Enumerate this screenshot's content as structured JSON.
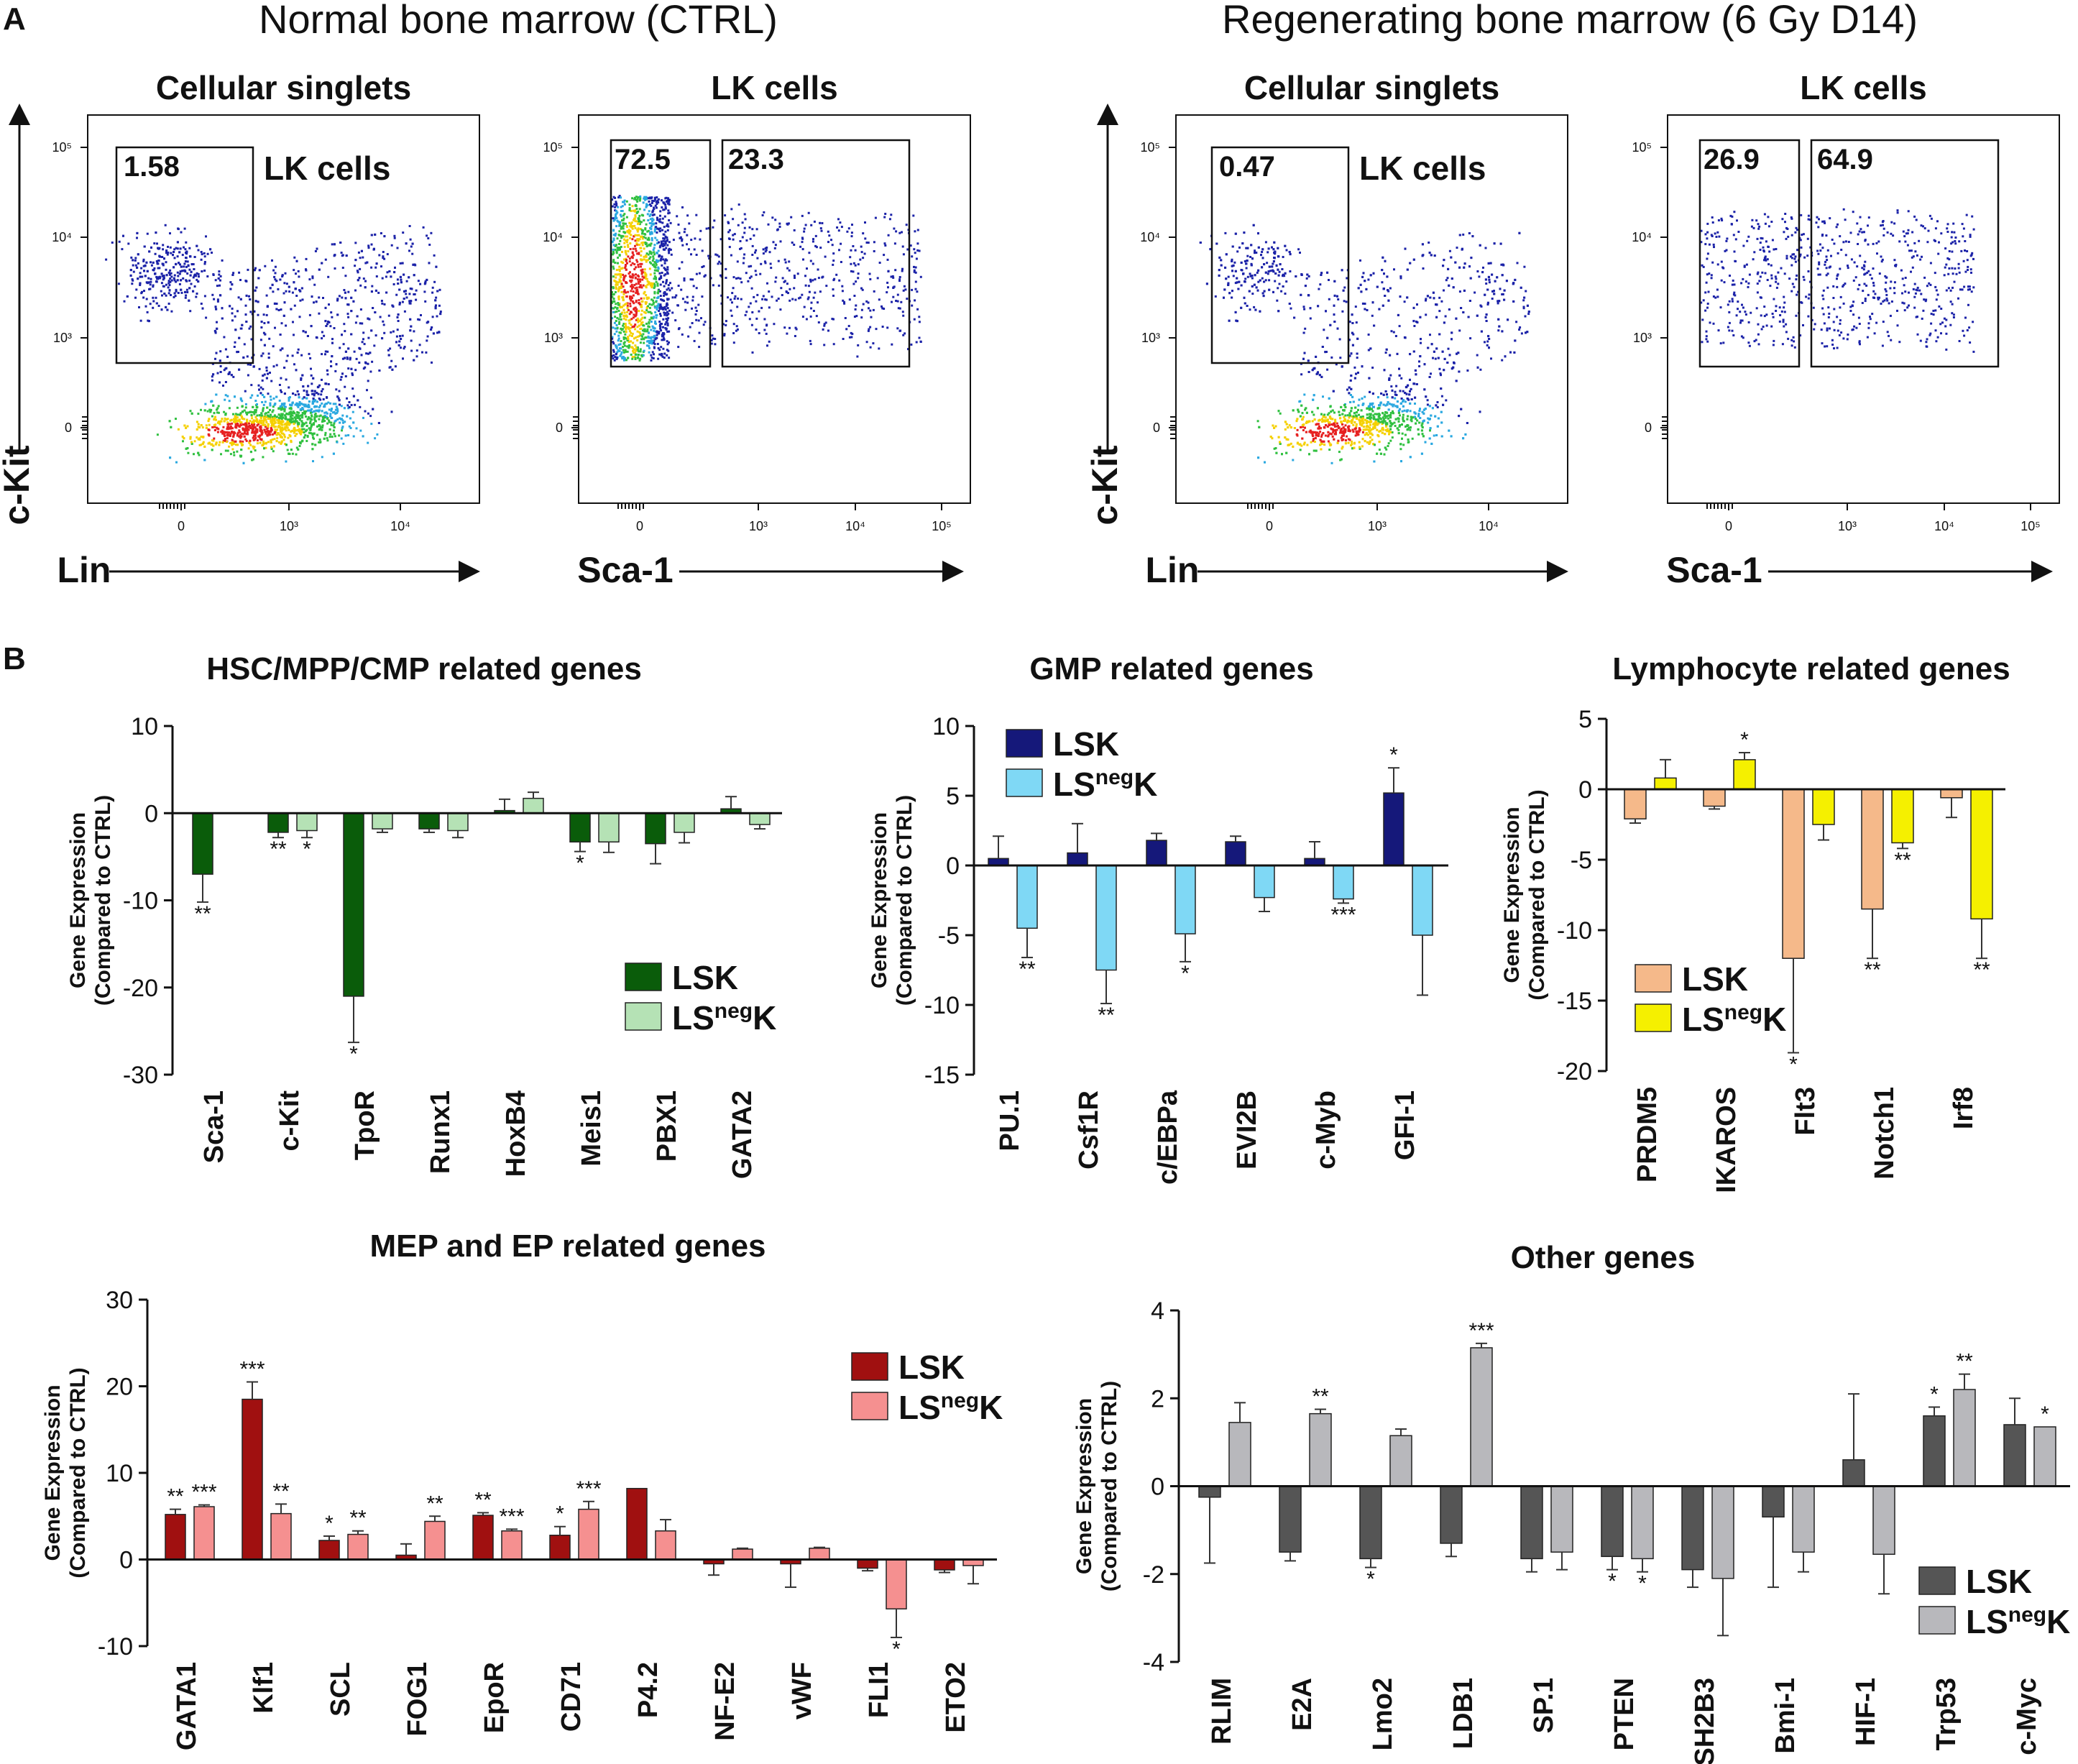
{
  "panel_a": {
    "letter": "A",
    "ctrl_title": "Normal bone marrow (CTRL)",
    "regen_title": "Regenerating bone marrow (6 Gy D14)",
    "plots": [
      {
        "title": "Cellular singlets",
        "gate_value": "1.58",
        "gate_label": "LK cells",
        "xlabel": "Lin",
        "ylabel": "c-Kit"
      },
      {
        "title": "LK cells",
        "gate_left": "72.5",
        "gate_right": "23.3",
        "xlabel": "Sca-1"
      },
      {
        "title": "Cellular singlets",
        "gate_value": "0.47",
        "gate_label": "LK cells",
        "xlabel": "Lin",
        "ylabel": "c-Kit"
      },
      {
        "title": "LK cells",
        "gate_left": "26.9",
        "gate_right": "64.9",
        "xlabel": "Sca-1"
      }
    ],
    "y_ticks": [
      "10⁵",
      "10⁴",
      "10³",
      "0"
    ],
    "lin_x_ticks": [
      "0",
      "10³",
      "10⁴"
    ],
    "sca_x_ticks": [
      "0",
      "10³",
      "10⁴",
      "10⁵"
    ]
  },
  "panel_b": {
    "letter": "B"
  },
  "legend": {
    "lsk": "LSK",
    "lsneg_base": "LS",
    "lsneg_sup": "neg",
    "lsneg_end": "K"
  },
  "ylabel_line1": "Gene Expression",
  "ylabel_line2": "(Compared to CTRL)",
  "chart_data": [
    {
      "type": "bar",
      "title": "HSC/MPP/CMP related genes",
      "categories": [
        "Sca-1",
        "c-Kit",
        "TpoR",
        "Runx1",
        "HoxB4",
        "Meis1",
        "PBX1",
        "GATA2"
      ],
      "ylim": [
        -30,
        10
      ],
      "yticks": [
        10,
        0,
        -10,
        -20,
        -30
      ],
      "legend_position": "bottom-right",
      "series": [
        {
          "name": "LSK",
          "color": "#0a5c0a",
          "values": [
            -7,
            -2.2,
            -21,
            -1.8,
            0.3,
            -3.3,
            -3.5,
            0.5
          ],
          "errors": [
            3.2,
            0.6,
            5.3,
            0.4,
            1.3,
            1.1,
            2.3,
            1.4
          ],
          "sig": [
            "**",
            "**",
            "*",
            "",
            "",
            "*",
            "",
            ""
          ]
        },
        {
          "name": "LSnegK",
          "color": "#b5e2b5",
          "values": [
            0,
            -2,
            -1.8,
            -2,
            1.7,
            -3.3,
            -2.2,
            -1.3
          ],
          "errors": [
            0,
            0.8,
            0.4,
            0.8,
            0.7,
            1.2,
            1.2,
            0.5
          ],
          "sig": [
            "",
            "*",
            "",
            "",
            "",
            "",
            "",
            ""
          ]
        }
      ]
    },
    {
      "type": "bar",
      "title": "GMP related genes",
      "categories": [
        "PU.1",
        "Csf1R",
        "c/EBPa",
        "EVI2B",
        "c-Myb",
        "GFI-1"
      ],
      "ylim": [
        -15,
        10
      ],
      "yticks": [
        10,
        5,
        0,
        -5,
        -10,
        -15
      ],
      "legend_position": "top-left",
      "series": [
        {
          "name": "LSK",
          "color": "#15187a",
          "values": [
            0.5,
            0.9,
            1.8,
            1.7,
            0.5,
            5.2
          ],
          "errors": [
            1.6,
            2.1,
            0.5,
            0.4,
            1.2,
            1.8
          ],
          "sig": [
            "",
            "",
            "",
            "",
            "",
            "*"
          ]
        },
        {
          "name": "LSnegK",
          "color": "#7fd8f5",
          "values": [
            -4.5,
            -7.5,
            -4.9,
            -2.3,
            -2.4,
            -5
          ],
          "errors": [
            2.1,
            2.4,
            2,
            1,
            0.3,
            4.3
          ],
          "sig": [
            "**",
            "**",
            "*",
            "",
            "***",
            ""
          ]
        }
      ]
    },
    {
      "type": "bar",
      "title": "Lymphocyte related genes",
      "categories": [
        "PRDM5",
        "IKAROS",
        "Flt3",
        "Notch1",
        "Irf8"
      ],
      "ylim": [
        -20,
        5
      ],
      "yticks": [
        5,
        0,
        -5,
        -10,
        -15,
        -20
      ],
      "legend_position": "bottom-left",
      "series": [
        {
          "name": "LSK",
          "color": "#f5b98a",
          "values": [
            -2.1,
            -1.2,
            -12,
            -8.5,
            -0.6
          ],
          "errors": [
            0.3,
            0.2,
            6.7,
            3.5,
            1.4
          ],
          "sig": [
            "",
            "",
            "*",
            "**",
            ""
          ]
        },
        {
          "name": "LSnegK",
          "color": "#f5f000",
          "values": [
            0.8,
            2.1,
            -2.5,
            -3.8,
            -9.2
          ],
          "errors": [
            1.3,
            0.5,
            1.1,
            0.4,
            2.8
          ],
          "sig": [
            "",
            "*",
            "",
            "**",
            "**"
          ]
        }
      ]
    },
    {
      "type": "bar",
      "title": "MEP and EP related genes",
      "categories": [
        "GATA1",
        "Klf1",
        "SCL",
        "FOG1",
        "EpoR",
        "CD71",
        "P4.2",
        "NF-E2",
        "vWF",
        "FLI1",
        "ETO2"
      ],
      "ylim": [
        -10,
        30
      ],
      "yticks": [
        30,
        20,
        10,
        0,
        -10
      ],
      "legend_position": "top-right",
      "series": [
        {
          "name": "LSK",
          "color": "#a01010",
          "values": [
            5.2,
            18.5,
            2.2,
            0.5,
            5.1,
            2.8,
            8.2,
            -0.5,
            -0.5,
            -1,
            -1.2
          ],
          "errors": [
            0.6,
            2,
            0.5,
            1.3,
            0.3,
            1,
            0,
            1.3,
            2.7,
            0.3,
            0.3
          ],
          "sig": [
            "**",
            "***",
            "*",
            "",
            "**",
            "*",
            "",
            "",
            "",
            "",
            ""
          ]
        },
        {
          "name": "LSnegK",
          "color": "#f59090",
          "values": [
            6.1,
            5.3,
            2.9,
            4.4,
            3.3,
            5.8,
            3.3,
            1.2,
            1.3,
            -5.7,
            -0.7
          ],
          "errors": [
            0.2,
            1.1,
            0.4,
            0.6,
            0.2,
            0.9,
            1.3,
            0.1,
            0.1,
            3.3,
            2.1
          ],
          "sig": [
            "***",
            "**",
            "**",
            "**",
            "***",
            "***",
            "",
            "",
            "",
            "*",
            ""
          ]
        }
      ]
    },
    {
      "type": "bar",
      "title": "Other genes",
      "categories": [
        "RLIM",
        "E2A",
        "Lmo2",
        "LDB1",
        "SP.1",
        "PTEN",
        "SH2B3",
        "Bmi-1",
        "HIF-1",
        "Trp53",
        "c-Myc"
      ],
      "ylim": [
        -4,
        4
      ],
      "yticks": [
        4,
        2,
        0,
        -2,
        -4
      ],
      "legend_position": "bottom-right",
      "series": [
        {
          "name": "LSK",
          "color": "#555555",
          "values": [
            -0.25,
            -1.5,
            -1.65,
            -1.3,
            -1.65,
            -1.6,
            -1.9,
            -0.7,
            0.6,
            1.6,
            1.4
          ],
          "errors": [
            1.5,
            0.2,
            0.2,
            0.3,
            0.3,
            0.3,
            0.4,
            1.6,
            1.5,
            0.2,
            0.6
          ],
          "sig": [
            "",
            "",
            "*",
            "",
            "",
            "*",
            "",
            "",
            "",
            "*",
            ""
          ]
        },
        {
          "name": "LSnegK",
          "color": "#b8b8bc",
          "values": [
            1.45,
            1.65,
            1.15,
            3.15,
            -1.5,
            -1.65,
            -2.1,
            -1.5,
            -1.55,
            2.2,
            1.35
          ],
          "errors": [
            0.45,
            0.1,
            0.15,
            0.1,
            0.4,
            0.3,
            1.3,
            0.45,
            0.9,
            0.35,
            0
          ],
          "sig": [
            "",
            "**",
            "",
            "***",
            "",
            "*",
            "",
            "",
            "",
            "**",
            "*"
          ]
        }
      ]
    }
  ]
}
